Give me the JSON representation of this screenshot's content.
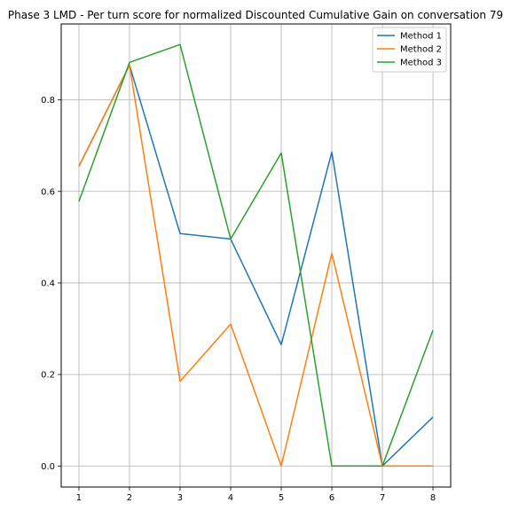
{
  "chart_data": {
    "type": "line",
    "title": "Phase 3 LMD - Per turn score for normalized Discounted Cumulative Gain on conversation 79",
    "xlabel": "",
    "ylabel": "",
    "x": [
      1,
      2,
      3,
      4,
      5,
      6,
      7,
      8
    ],
    "x_ticks": [
      "1",
      "2",
      "3",
      "4",
      "5",
      "6",
      "7",
      "8"
    ],
    "y_ticks": [
      "0.0",
      "0.2",
      "0.4",
      "0.6",
      "0.8"
    ],
    "xlim": [
      0.65,
      8.35
    ],
    "ylim": [
      -0.046,
      0.966
    ],
    "grid": true,
    "legend_position": "top-right",
    "series": [
      {
        "name": "Method 1",
        "color": "#1f77b4",
        "values": [
          0.655,
          0.876,
          0.508,
          0.496,
          0.265,
          0.686,
          0.0,
          0.107
        ]
      },
      {
        "name": "Method 2",
        "color": "#ff7f0e",
        "values": [
          0.655,
          0.876,
          0.185,
          0.31,
          0.0,
          0.465,
          0.0,
          0.0
        ]
      },
      {
        "name": "Method 3",
        "color": "#2ca02c",
        "values": [
          0.578,
          0.882,
          0.921,
          0.496,
          0.684,
          0.0,
          0.0,
          0.297
        ]
      }
    ]
  }
}
